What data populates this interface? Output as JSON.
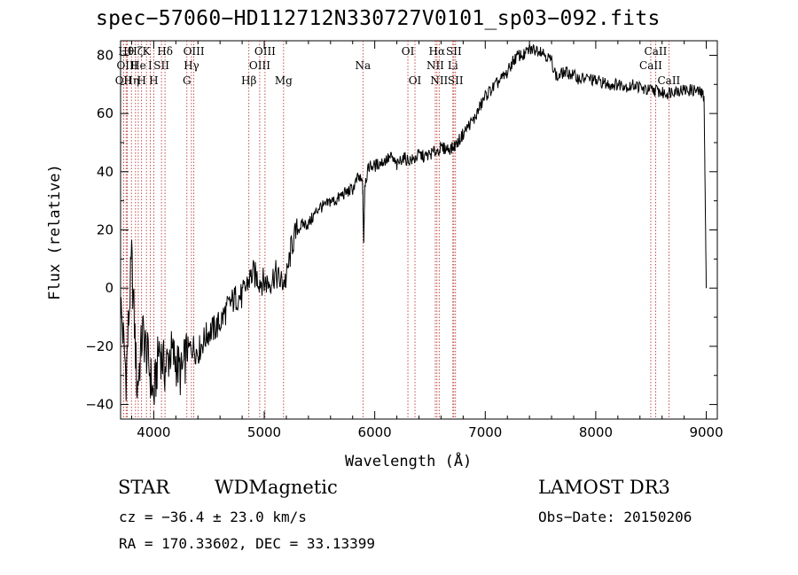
{
  "chart_data": {
    "type": "line",
    "title": "spec−57060−HD112712N330727V0101_sp03−092.fits",
    "xlabel": "Wavelength (Å)",
    "ylabel": "Flux (relative)",
    "xlim": [
      3700,
      9100
    ],
    "ylim": [
      -45,
      85
    ],
    "xticks": [
      4000,
      5000,
      6000,
      7000,
      8000,
      9000
    ],
    "yticks": [
      -40,
      -20,
      0,
      20,
      40,
      60,
      80
    ],
    "grid": false,
    "series": [
      {
        "name": "spectrum",
        "x": [
          3700,
          3750,
          3800,
          3850,
          3900,
          3950,
          4000,
          4050,
          4100,
          4150,
          4200,
          4250,
          4300,
          4350,
          4400,
          4450,
          4500,
          4550,
          4600,
          4650,
          4700,
          4750,
          4800,
          4850,
          4900,
          4950,
          5000,
          5050,
          5100,
          5150,
          5200,
          5250,
          5300,
          5350,
          5400,
          5450,
          5500,
          5550,
          5600,
          5650,
          5700,
          5750,
          5800,
          5850,
          5890,
          5900,
          5910,
          5950,
          6000,
          6050,
          6100,
          6150,
          6200,
          6250,
          6300,
          6350,
          6400,
          6450,
          6500,
          6550,
          6600,
          6650,
          6700,
          6750,
          6800,
          6850,
          6900,
          6950,
          7000,
          7050,
          7100,
          7150,
          7200,
          7250,
          7300,
          7350,
          7400,
          7450,
          7500,
          7550,
          7600,
          7650,
          7700,
          7750,
          7800,
          7850,
          7900,
          7950,
          8000,
          8050,
          8100,
          8150,
          8200,
          8250,
          8300,
          8350,
          8400,
          8450,
          8500,
          8550,
          8600,
          8650,
          8700,
          8750,
          8800,
          8850,
          8900,
          8950,
          8980,
          9000
        ],
        "y": [
          -5,
          -30,
          10,
          -35,
          -15,
          -25,
          -38,
          -20,
          -28,
          -22,
          -25,
          -30,
          -22,
          -20,
          -22,
          -18,
          -15,
          -14,
          -12,
          -8,
          -5,
          -3,
          -3,
          2,
          5,
          3,
          2,
          2,
          5,
          2,
          3,
          15,
          20,
          22,
          22,
          25,
          28,
          28,
          30,
          30,
          32,
          33,
          34,
          38,
          36,
          15,
          36,
          42,
          42,
          43,
          44,
          45,
          42,
          45,
          44,
          44,
          46,
          45,
          46,
          47,
          48,
          48,
          48,
          50,
          53,
          56,
          58,
          62,
          66,
          68,
          70,
          72,
          74,
          78,
          80,
          80,
          82,
          82,
          82,
          80,
          78,
          72,
          74,
          74,
          73,
          72,
          72,
          72,
          71,
          71,
          70,
          70,
          70,
          70,
          69,
          70,
          69,
          68,
          68,
          68,
          67,
          67,
          68,
          68,
          68,
          68,
          68,
          67,
          66,
          0
        ]
      }
    ],
    "line_labels": [
      {
        "wavelength": 3727,
        "label": "OII",
        "row": 2
      },
      {
        "wavelength": 3750,
        "label": "Hθ",
        "row": 0
      },
      {
        "wavelength": 3760,
        "label": "OIII",
        "row": 1
      },
      {
        "wavelength": 3798,
        "label": "Hη",
        "row": 2
      },
      {
        "wavelength": 3835,
        "label": "Hζ",
        "row": 0
      },
      {
        "wavelength": 3860,
        "label": "He",
        "row": 1
      },
      {
        "wavelength": 3890,
        "label": "H",
        "row": 2
      },
      {
        "wavelength": 3934,
        "label": "K",
        "row": 0
      },
      {
        "wavelength": 3968,
        "label": "I",
        "row": 1
      },
      {
        "wavelength": 4000,
        "label": "H",
        "row": 2
      },
      {
        "wavelength": 4070,
        "label": "SII",
        "row": 1
      },
      {
        "wavelength": 4102,
        "label": "Hδ",
        "row": 0
      },
      {
        "wavelength": 4300,
        "label": "G",
        "row": 2
      },
      {
        "wavelength": 4341,
        "label": "Hγ",
        "row": 1
      },
      {
        "wavelength": 4363,
        "label": "OIII",
        "row": 0
      },
      {
        "wavelength": 4861,
        "label": "Hβ",
        "row": 2
      },
      {
        "wavelength": 4959,
        "label": "OIII",
        "row": 1
      },
      {
        "wavelength": 5007,
        "label": "OIII",
        "row": 0
      },
      {
        "wavelength": 5175,
        "label": "Mg",
        "row": 2
      },
      {
        "wavelength": 5893,
        "label": "Na",
        "row": 1
      },
      {
        "wavelength": 6300,
        "label": "OI",
        "row": 0
      },
      {
        "wavelength": 6364,
        "label": "OI",
        "row": 2
      },
      {
        "wavelength": 6548,
        "label": "NII",
        "row": 1
      },
      {
        "wavelength": 6563,
        "label": "Hα",
        "row": 0
      },
      {
        "wavelength": 6583,
        "label": "NII",
        "row": 2
      },
      {
        "wavelength": 6707,
        "label": "Li",
        "row": 1
      },
      {
        "wavelength": 6716,
        "label": "SII",
        "row": 0
      },
      {
        "wavelength": 6731,
        "label": "SII",
        "row": 2
      },
      {
        "wavelength": 8498,
        "label": "CaII",
        "row": 1
      },
      {
        "wavelength": 8542,
        "label": "CaII",
        "row": 0
      },
      {
        "wavelength": 8662,
        "label": "CaII",
        "row": 2
      }
    ]
  },
  "info": {
    "object_class": "STAR",
    "subclass": "WDMagnetic",
    "survey": "LAMOST DR3",
    "cz": "cz = −36.4 ± 23.0 km/s",
    "obs_date": "Obs−Date: 20150206",
    "coords": "RA = 170.33602, DEC =  33.13399"
  },
  "colors": {
    "spectrum": "#000000",
    "line_markers": "#b22222",
    "axes": "#000000"
  }
}
